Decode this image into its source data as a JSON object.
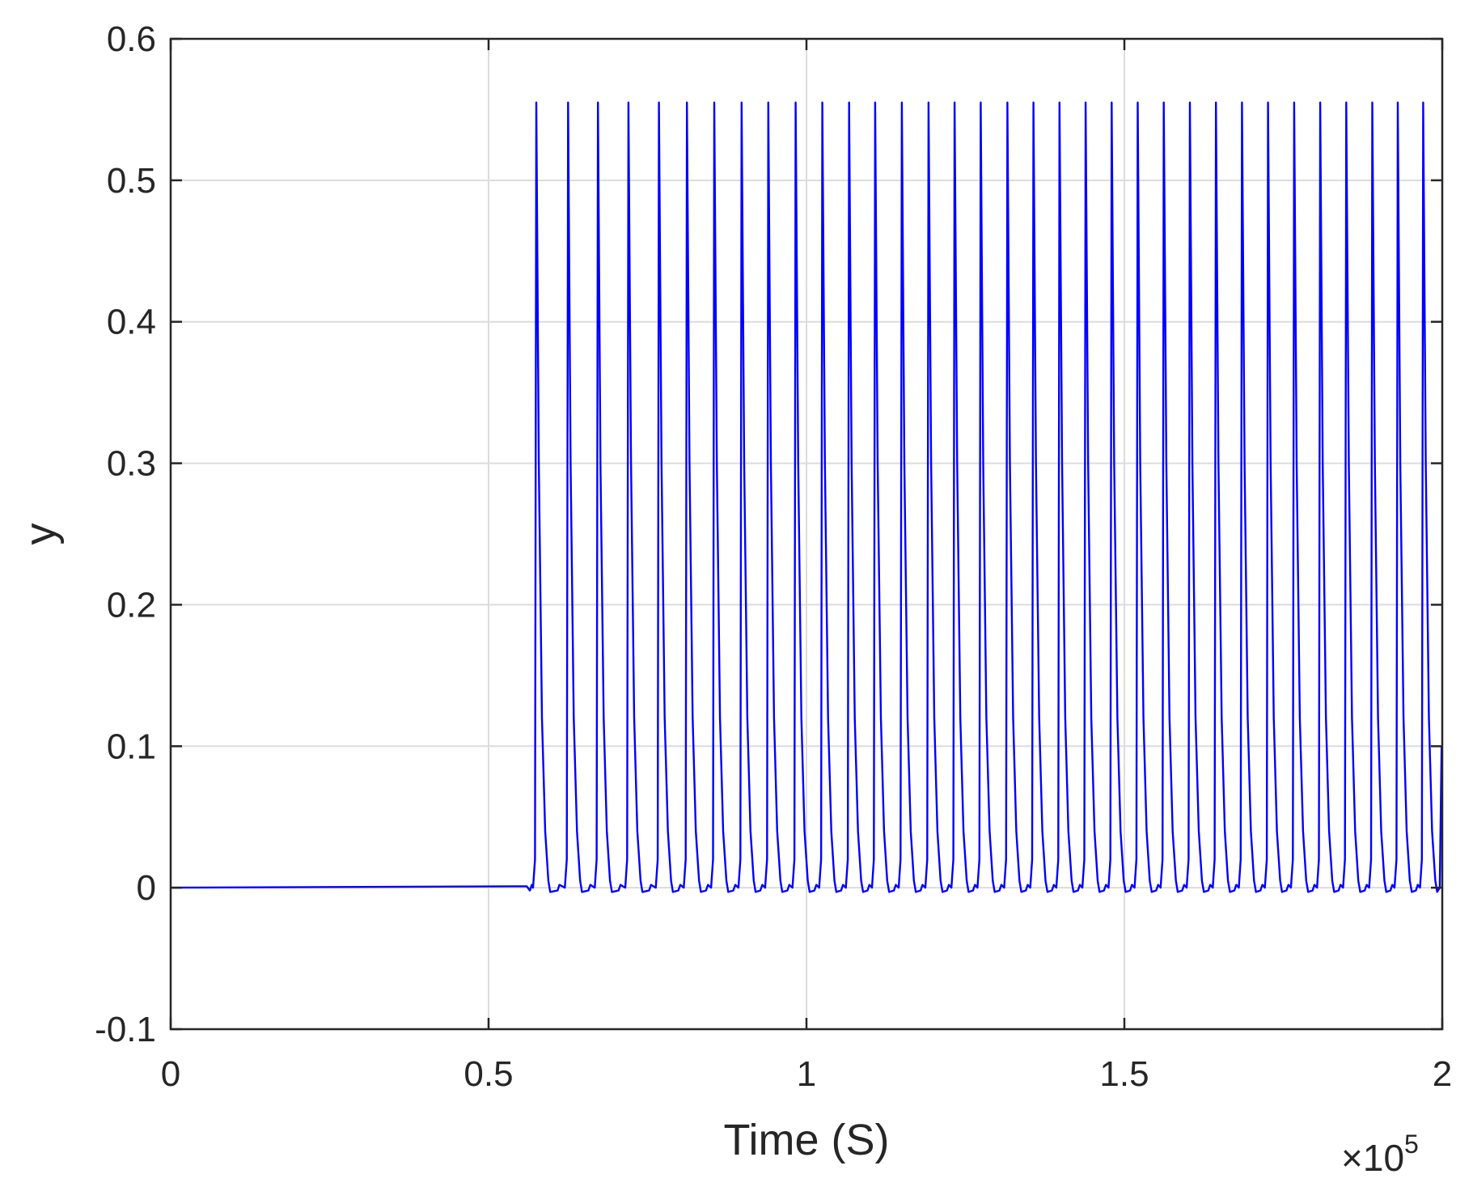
{
  "chart_data": {
    "type": "line",
    "xlabel": "Time (S)",
    "ylabel": "y",
    "x_multiplier_label": "×10",
    "x_multiplier_exponent": "5",
    "xlim": [
      0,
      200000
    ],
    "ylim": [
      -0.1,
      0.6
    ],
    "x_ticks": [
      0,
      50000,
      100000,
      150000,
      200000
    ],
    "x_tick_labels": [
      "0",
      "0.5",
      "1",
      "1.5",
      "2"
    ],
    "y_ticks": [
      -0.1,
      0,
      0.1,
      0.2,
      0.3,
      0.4,
      0.5,
      0.6
    ],
    "y_tick_labels": [
      "-0.1",
      "0",
      "0.1",
      "0.2",
      "0.3",
      "0.4",
      "0.5",
      "0.6"
    ],
    "grid": true,
    "series": [
      {
        "color": "#0000ff",
        "baseline": 0,
        "onset_x": 56000,
        "peak_value": 0.555,
        "spike_times": [
          57500,
          62500,
          67200,
          72000,
          76800,
          81200,
          85500,
          89800,
          94000,
          98300,
          102500,
          106700,
          110800,
          115000,
          119200,
          123300,
          127400,
          131600,
          135700,
          139800,
          143900,
          148000,
          152100,
          156200,
          160300,
          164400,
          168500,
          172600,
          176700,
          180800,
          184900,
          189000,
          193000,
          197000
        ]
      }
    ]
  }
}
